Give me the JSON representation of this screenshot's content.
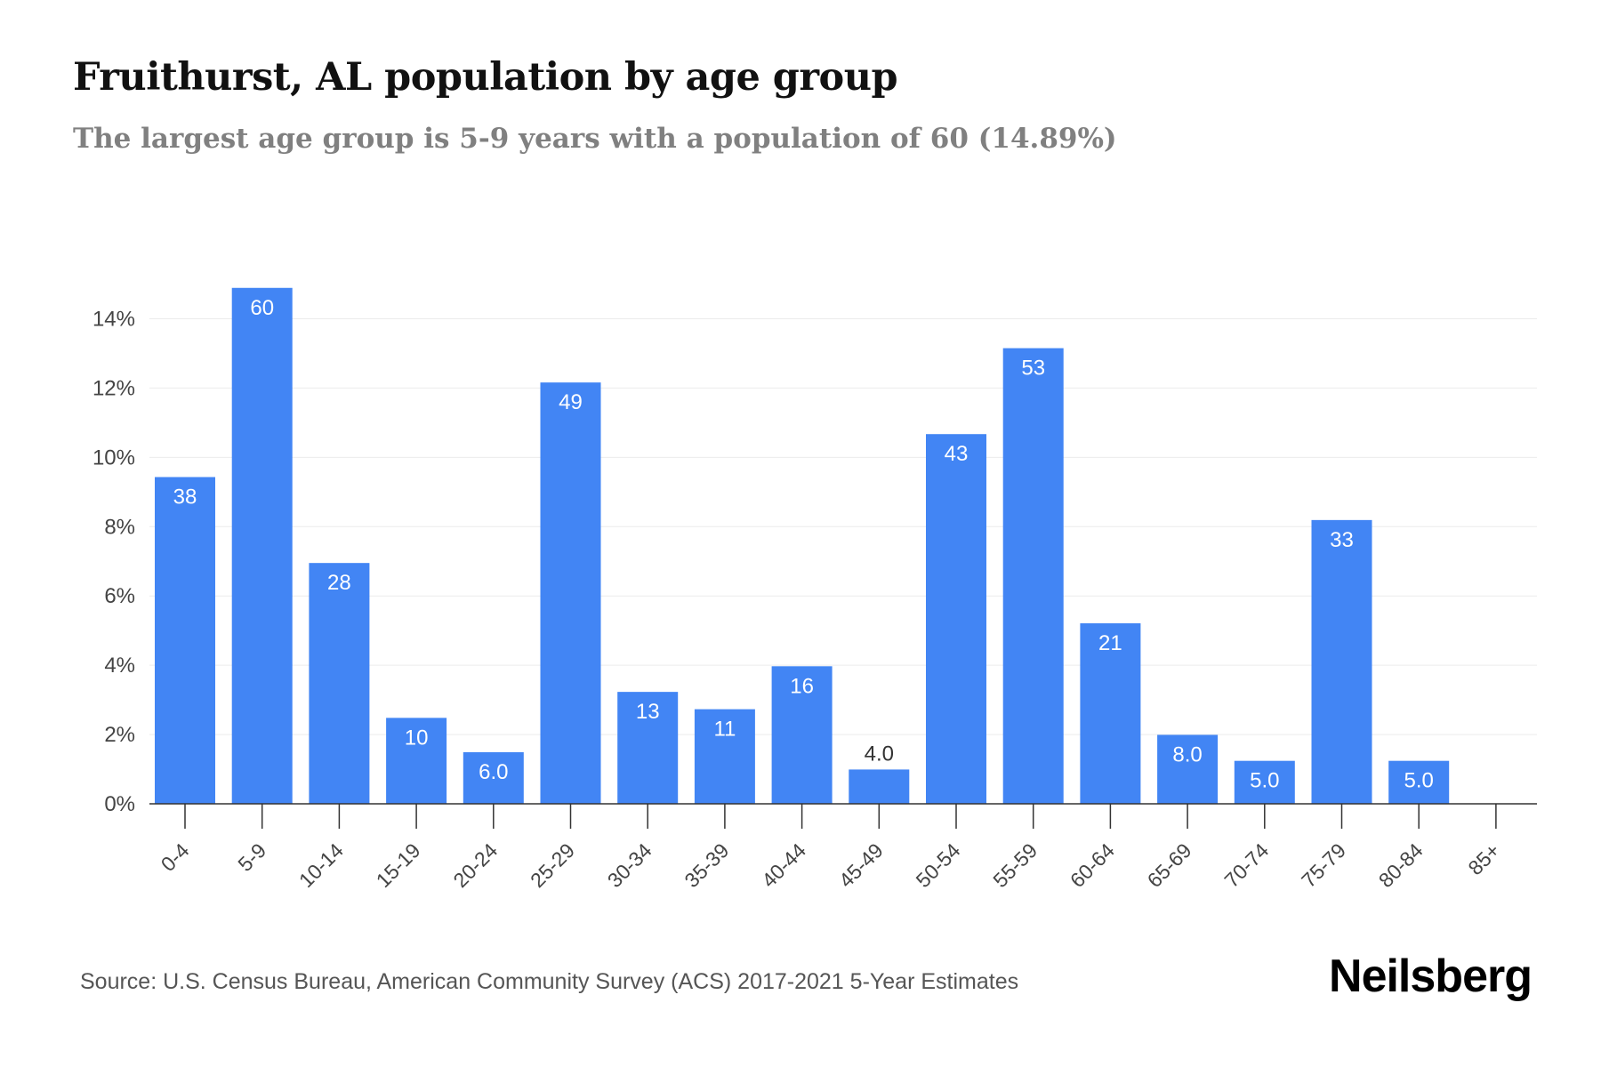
{
  "header": {
    "title": "Fruithurst, AL population by age group",
    "subtitle": "The largest age group is 5-9 years with a population of 60 (14.89%)"
  },
  "footer": {
    "source": "Source: U.S. Census Bureau, American Community Survey (ACS) 2017-2021 5-Year Estimates",
    "brand": "Neilsberg"
  },
  "colors": {
    "bar": "#4285f4",
    "axis": "#333333",
    "grid": "#ececec",
    "label_inside": "#ffffff",
    "label_outside": "#333333",
    "tick_text": "#444444"
  },
  "chart_data": {
    "type": "bar",
    "categories": [
      "0-4",
      "5-9",
      "10-14",
      "15-19",
      "20-24",
      "25-29",
      "30-34",
      "35-39",
      "40-44",
      "45-49",
      "50-54",
      "55-59",
      "60-64",
      "65-69",
      "70-74",
      "75-79",
      "80-84",
      "85+"
    ],
    "values": [
      9.43,
      14.89,
      6.95,
      2.48,
      1.49,
      12.16,
      3.23,
      2.73,
      3.97,
      0.99,
      10.67,
      13.15,
      5.21,
      1.99,
      1.24,
      8.19,
      1.24,
      0
    ],
    "data_labels": [
      "38",
      "60",
      "28",
      "10",
      "6.0",
      "49",
      "13",
      "11",
      "16",
      "4.0",
      "43",
      "53",
      "21",
      "8.0",
      "5.0",
      "33",
      "5.0",
      ""
    ],
    "y_ticks": [
      0,
      2,
      4,
      6,
      8,
      10,
      12,
      14
    ],
    "y_tick_labels": [
      "0%",
      "2%",
      "4%",
      "6%",
      "8%",
      "10%",
      "12%",
      "14%"
    ],
    "ylim": [
      0,
      15.5
    ],
    "grid": true,
    "legend": "none",
    "xlabel": "",
    "ylabel": ""
  }
}
